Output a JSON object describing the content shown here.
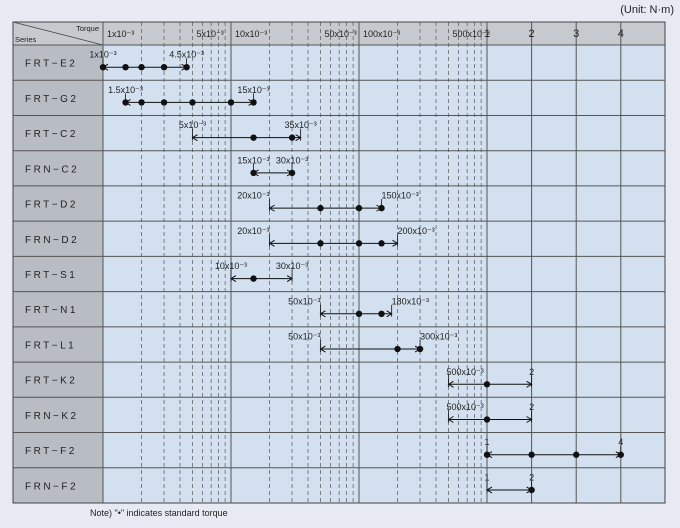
{
  "unit_label": "(Unit: N·m)",
  "note": "Note) \"•\" indicates standard torque",
  "header": {
    "torque": "Torque",
    "series": "Series"
  },
  "chart_data": {
    "type": "range-dot",
    "x_scale": "log",
    "x_ticks": [
      {
        "value": 0.001,
        "label": "1x10⁻³"
      },
      {
        "value": 0.005,
        "label": "5x10⁻³"
      },
      {
        "value": 0.01,
        "label": "10x10⁻³"
      },
      {
        "value": 0.05,
        "label": "50x10⁻³"
      },
      {
        "value": 0.1,
        "label": "100x10⁻³"
      },
      {
        "value": 0.5,
        "label": "500x10⁻³"
      },
      {
        "value": 1,
        "label": "1"
      },
      {
        "value": 2,
        "label": "2"
      },
      {
        "value": 3,
        "label": "3"
      },
      {
        "value": 4,
        "label": "4"
      }
    ],
    "series": [
      {
        "name": "FRT−E2",
        "min": 0.001,
        "max": 0.0045,
        "points": [
          0.001,
          0.0015,
          0.002,
          0.003,
          0.0045
        ],
        "min_label": "1x10⁻³",
        "max_label": "4.5x10⁻³"
      },
      {
        "name": "FRT−G2",
        "min": 0.0015,
        "max": 0.015,
        "points": [
          0.0015,
          0.002,
          0.003,
          0.005,
          0.01,
          0.015
        ],
        "min_label": "1.5x10⁻³",
        "max_label": "15x10⁻³"
      },
      {
        "name": "FRT−C2",
        "min": 0.005,
        "max": 0.035,
        "points": [
          0.015,
          0.03
        ],
        "min_label": "5x10⁻³",
        "max_label": "35x10⁻³"
      },
      {
        "name": "FRN−C2",
        "min": 0.015,
        "max": 0.03,
        "points": [
          0.015,
          0.03
        ],
        "min_label": "15x10⁻³",
        "max_label": "30x10⁻³"
      },
      {
        "name": "FRT−D2",
        "min": 0.02,
        "max": 0.15,
        "points": [
          0.05,
          0.1,
          0.15
        ],
        "min_label": "20x10⁻³",
        "max_label": "150x10⁻³"
      },
      {
        "name": "FRN−D2",
        "min": 0.02,
        "max": 0.2,
        "points": [
          0.05,
          0.1,
          0.15
        ],
        "min_label": "20x10⁻³",
        "max_label": "200x10⁻³"
      },
      {
        "name": "FRT−S1",
        "min": 0.01,
        "max": 0.03,
        "points": [
          0.015
        ],
        "min_label": "10x10⁻³",
        "max_label": "30x10⁻³"
      },
      {
        "name": "FRT−N1",
        "min": 0.05,
        "max": 0.18,
        "points": [
          0.1,
          0.15
        ],
        "min_label": "50x10⁻³",
        "max_label": "180x10⁻³"
      },
      {
        "name": "FRT−L1",
        "min": 0.05,
        "max": 0.3,
        "points": [
          0.2,
          0.3
        ],
        "min_label": "50x10⁻³",
        "max_label": "300x10⁻³"
      },
      {
        "name": "FRT−K2",
        "min": 0.5,
        "max": 2,
        "points": [
          1
        ],
        "min_label": "500x10⁻³",
        "max_label": "2"
      },
      {
        "name": "FRN−K2",
        "min": 0.5,
        "max": 2,
        "points": [
          1
        ],
        "min_label": "500x10⁻³",
        "max_label": "2"
      },
      {
        "name": "FRT−F2",
        "min": 1,
        "max": 4,
        "points": [
          1,
          2,
          3,
          4
        ],
        "min_label": "1",
        "max_label": "4"
      },
      {
        "name": "FRN−F2",
        "min": 1,
        "max": 2,
        "points": [
          2
        ],
        "min_label": "1",
        "max_label": "2"
      }
    ],
    "colors": {
      "plot_bg": "#d3e0ef",
      "label_bg": "#b8bdc3",
      "header_bg": "#c6cacf",
      "page_bg": "#e8eaf3"
    }
  }
}
